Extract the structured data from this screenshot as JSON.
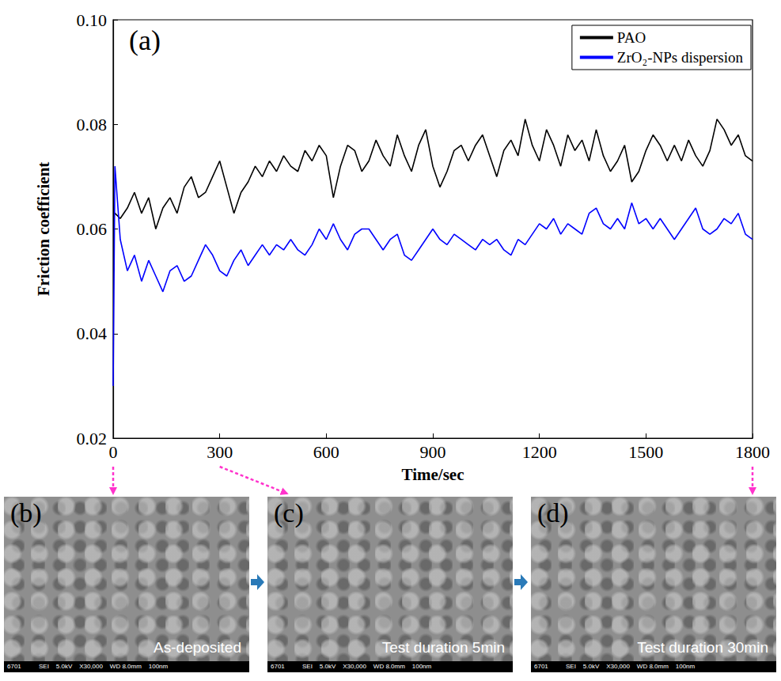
{
  "chart_data": {
    "type": "line",
    "panel_label": "(a)",
    "xlabel": "Time/sec",
    "ylabel": "Friction coefficient",
    "x": [
      0,
      5,
      20,
      40,
      60,
      80,
      100,
      120,
      140,
      160,
      180,
      200,
      220,
      240,
      260,
      280,
      300,
      320,
      340,
      360,
      380,
      400,
      420,
      440,
      460,
      480,
      500,
      520,
      540,
      560,
      580,
      600,
      620,
      640,
      660,
      680,
      700,
      720,
      740,
      760,
      780,
      800,
      820,
      840,
      860,
      880,
      900,
      920,
      940,
      960,
      980,
      1000,
      1020,
      1040,
      1060,
      1080,
      1100,
      1120,
      1140,
      1160,
      1180,
      1200,
      1220,
      1240,
      1260,
      1280,
      1300,
      1320,
      1340,
      1360,
      1380,
      1400,
      1420,
      1440,
      1460,
      1480,
      1500,
      1520,
      1540,
      1560,
      1580,
      1600,
      1620,
      1640,
      1660,
      1680,
      1700,
      1720,
      1740,
      1760,
      1780,
      1800
    ],
    "series": [
      {
        "name": "PAO",
        "color": "#000000",
        "values": [
          0.063,
          0.063,
          0.062,
          0.064,
          0.067,
          0.063,
          0.066,
          0.06,
          0.064,
          0.066,
          0.063,
          0.068,
          0.07,
          0.066,
          0.067,
          0.07,
          0.073,
          0.068,
          0.063,
          0.067,
          0.069,
          0.072,
          0.07,
          0.073,
          0.071,
          0.074,
          0.072,
          0.071,
          0.075,
          0.073,
          0.076,
          0.074,
          0.066,
          0.072,
          0.076,
          0.075,
          0.071,
          0.073,
          0.077,
          0.074,
          0.072,
          0.078,
          0.074,
          0.071,
          0.076,
          0.079,
          0.072,
          0.068,
          0.071,
          0.075,
          0.076,
          0.073,
          0.076,
          0.078,
          0.074,
          0.07,
          0.075,
          0.077,
          0.074,
          0.081,
          0.076,
          0.073,
          0.079,
          0.076,
          0.072,
          0.078,
          0.075,
          0.077,
          0.073,
          0.079,
          0.074,
          0.071,
          0.073,
          0.076,
          0.069,
          0.071,
          0.075,
          0.078,
          0.076,
          0.073,
          0.076,
          0.073,
          0.077,
          0.074,
          0.072,
          0.075,
          0.081,
          0.079,
          0.076,
          0.078,
          0.074,
          0.073
        ]
      },
      {
        "name": "ZrO₂-NPs dispersion",
        "color": "#0000ff",
        "values": [
          0.03,
          0.072,
          0.058,
          0.052,
          0.055,
          0.05,
          0.054,
          0.051,
          0.048,
          0.052,
          0.053,
          0.05,
          0.051,
          0.054,
          0.057,
          0.055,
          0.052,
          0.051,
          0.054,
          0.056,
          0.053,
          0.055,
          0.057,
          0.055,
          0.057,
          0.056,
          0.058,
          0.056,
          0.055,
          0.057,
          0.06,
          0.058,
          0.061,
          0.058,
          0.056,
          0.059,
          0.06,
          0.06,
          0.058,
          0.056,
          0.058,
          0.059,
          0.055,
          0.054,
          0.056,
          0.058,
          0.06,
          0.058,
          0.057,
          0.059,
          0.058,
          0.057,
          0.056,
          0.058,
          0.057,
          0.058,
          0.056,
          0.055,
          0.058,
          0.057,
          0.059,
          0.061,
          0.06,
          0.062,
          0.059,
          0.061,
          0.06,
          0.059,
          0.063,
          0.064,
          0.061,
          0.06,
          0.062,
          0.06,
          0.065,
          0.061,
          0.062,
          0.06,
          0.062,
          0.06,
          0.058,
          0.06,
          0.062,
          0.064,
          0.06,
          0.059,
          0.06,
          0.062,
          0.061,
          0.063,
          0.059,
          0.058
        ]
      }
    ],
    "xlim": [
      0,
      1800
    ],
    "xticks": [
      0,
      300,
      600,
      900,
      1200,
      1500,
      1800
    ],
    "ylim": [
      0.02,
      0.1
    ],
    "yticks": [
      0.02,
      0.04,
      0.06,
      0.08,
      {
        "value": 0.1,
        "label": "0.10"
      }
    ],
    "legend": "upper right",
    "grid": false
  },
  "panels": [
    {
      "label": "(b)",
      "caption": "As-deposited",
      "time": 0,
      "info": "6701          SEI    5.0kV    X30,000    WD 8.0mm    100nm"
    },
    {
      "label": "(c)",
      "caption": "Test duration 5min",
      "time": 300,
      "info": "6701          SEI    5.0kV    X30,000    WD 8.0mm    100nm"
    },
    {
      "label": "(d)",
      "caption": "Test duration 30min",
      "time": 1800,
      "info": "6701          SEI    5.0kV    X30,000    WD 8.0mm    100nm"
    }
  ]
}
